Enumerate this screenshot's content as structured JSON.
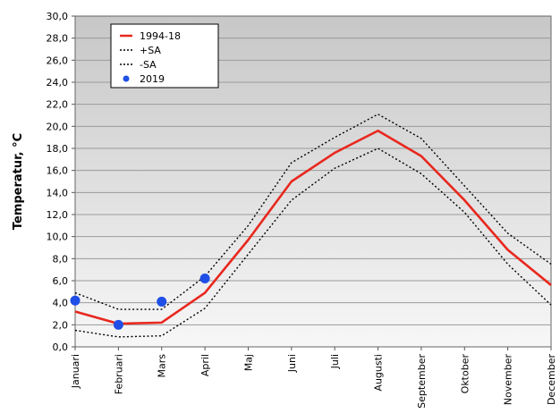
{
  "chart_data": {
    "type": "line",
    "title": "",
    "xlabel": "",
    "ylabel": "Temperatur, °C",
    "categories": [
      "Januari",
      "Februari",
      "Mars",
      "April",
      "Maj",
      "Juni",
      "Juli",
      "Augusti",
      "September",
      "Oktober",
      "November",
      "December"
    ],
    "ylim": [
      0,
      30
    ],
    "yticks": [
      "0,0",
      "2,0",
      "4,0",
      "6,0",
      "8,0",
      "10,0",
      "12,0",
      "14,0",
      "16,0",
      "18,0",
      "20,0",
      "22,0",
      "24,0",
      "26,0",
      "28,0",
      "30,0"
    ],
    "grid": "horizontal",
    "legend_position": "top-left",
    "series": [
      {
        "name": "1994-18",
        "style": "solid",
        "color": "#e8281e",
        "values": [
          3.2,
          2.1,
          2.2,
          4.9,
          9.7,
          15.0,
          17.6,
          19.6,
          17.3,
          13.3,
          8.8,
          5.6
        ]
      },
      {
        "name": "+SA",
        "style": "dotted",
        "color": "#000000",
        "values": [
          4.9,
          3.4,
          3.4,
          6.4,
          11.0,
          16.7,
          19.0,
          21.1,
          18.9,
          14.6,
          10.3,
          7.5
        ]
      },
      {
        "name": "-SA",
        "style": "dotted",
        "color": "#000000",
        "values": [
          1.5,
          0.9,
          1.0,
          3.5,
          8.4,
          13.3,
          16.2,
          18.0,
          15.7,
          12.2,
          7.5,
          3.8
        ]
      },
      {
        "name": "2019",
        "style": "marker",
        "color": "#1f4fe6",
        "values": [
          4.2,
          2.0,
          4.1,
          6.2,
          null,
          null,
          null,
          null,
          null,
          null,
          null,
          null
        ]
      }
    ]
  }
}
